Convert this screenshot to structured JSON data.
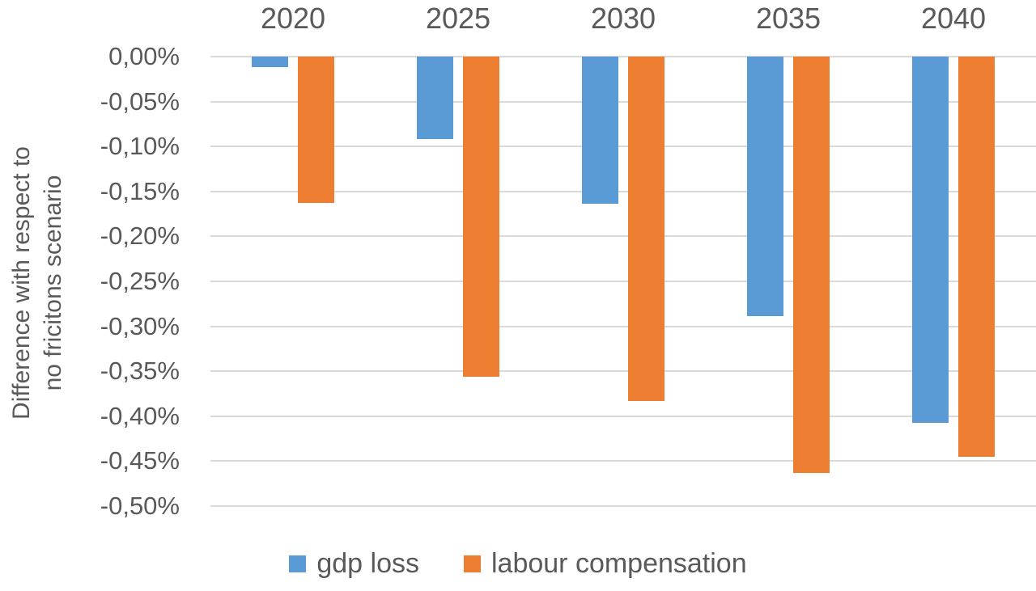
{
  "chart_data": {
    "type": "bar",
    "title": "",
    "categories": [
      "2020",
      "2025",
      "2030",
      "2035",
      "2040"
    ],
    "series": [
      {
        "name": "gdp loss",
        "color": "#5B9BD5",
        "values": [
          -0.012,
          -0.092,
          -0.164,
          -0.289,
          -0.407
        ]
      },
      {
        "name": "labour compensation",
        "color": "#ED7D31",
        "values": [
          -0.163,
          -0.356,
          -0.383,
          -0.463,
          -0.445
        ]
      }
    ],
    "xlabel": "",
    "ylabel": "Difference with respect to no fricitons scenario",
    "ylabel_line1": "Difference with respect to",
    "ylabel_line2": "no fricitons scenario",
    "y_ticks": [
      "0,00%",
      "-0,05%",
      "-0,10%",
      "-0,15%",
      "-0,20%",
      "-0,25%",
      "-0,30%",
      "-0,35%",
      "-0,40%",
      "-0,45%",
      "-0,50%"
    ],
    "ylim": [
      -0.5,
      0
    ],
    "value_unit": "%",
    "decimal_separator": ",",
    "grid": true,
    "x_axis_position": "top",
    "legend_position": "bottom",
    "colors": {
      "grid": "#D9D9D9",
      "text": "#595959",
      "background": "#FFFFFF"
    }
  }
}
